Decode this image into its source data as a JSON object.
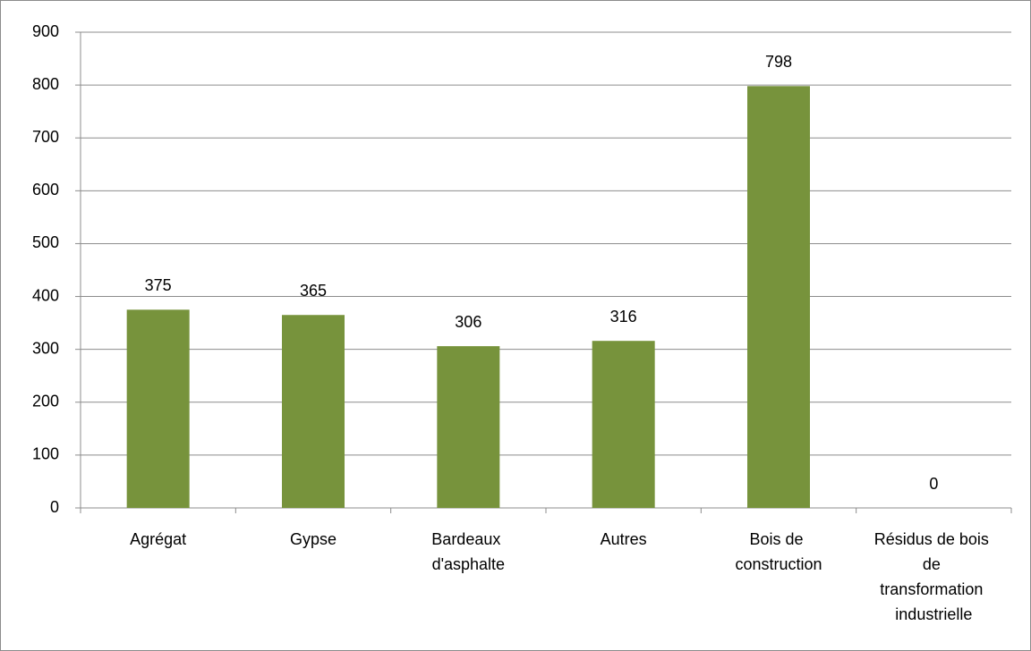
{
  "chart_data": {
    "type": "bar",
    "categories": [
      "Agrégat",
      "Gypse",
      "Bardeaux d'asphalte",
      "Autres",
      "Bois de construction",
      "Résidus de bois de transformation industrielle"
    ],
    "values": [
      375,
      365,
      306,
      316,
      798,
      0
    ],
    "color": "#77933c",
    "ylim": [
      0,
      900
    ],
    "yticks": [
      0,
      100,
      200,
      300,
      400,
      500,
      600,
      700,
      800,
      900
    ],
    "grid": true
  }
}
